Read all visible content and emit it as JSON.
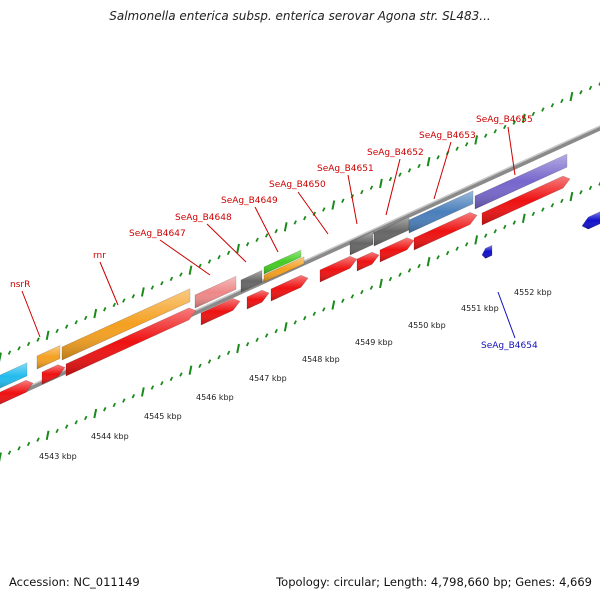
{
  "title": "Salmonella enterica subsp. enterica serovar Agona str. SL483...",
  "footer": {
    "accession": "Accession: NC_011149",
    "summary": "Topology: circular; Length: 4,798,660 bp; Genes: 4,669"
  },
  "colors": {
    "forward_cds": "#ee1111",
    "reverse_cds": "#1010cc",
    "rrna": "#f4a020",
    "cyan": "#22bbee",
    "pink": "#ee8888",
    "gray": "#666666",
    "green": "#44cc22",
    "steel": "#4a7fbb",
    "purple": "#7766cc",
    "ticks": "#1a8a1a",
    "label_forward": "#cc0000",
    "label_reverse": "#1111bb"
  },
  "scale": {
    "unit": "kbp",
    "labels": [
      "4543 kbp",
      "4544 kbp",
      "4545 kbp",
      "4546 kbp",
      "4547 kbp",
      "4548 kbp",
      "4549 kbp",
      "4550 kbp",
      "4551 kbp",
      "4552 kbp"
    ]
  },
  "gene_labels": [
    {
      "text": "nsrR",
      "strand": "forward"
    },
    {
      "text": "rnr",
      "strand": "forward"
    },
    {
      "text": "SeAg_B4647",
      "strand": "forward"
    },
    {
      "text": "SeAg_B4648",
      "strand": "forward"
    },
    {
      "text": "SeAg_B4649",
      "strand": "forward"
    },
    {
      "text": "SeAg_B4650",
      "strand": "forward"
    },
    {
      "text": "SeAg_B4651",
      "strand": "forward"
    },
    {
      "text": "SeAg_B4652",
      "strand": "forward"
    },
    {
      "text": "SeAg_B4653",
      "strand": "forward"
    },
    {
      "text": "SeAg_B4655",
      "strand": "forward"
    },
    {
      "text": "SeAg_B4654",
      "strand": "reverse"
    }
  ]
}
